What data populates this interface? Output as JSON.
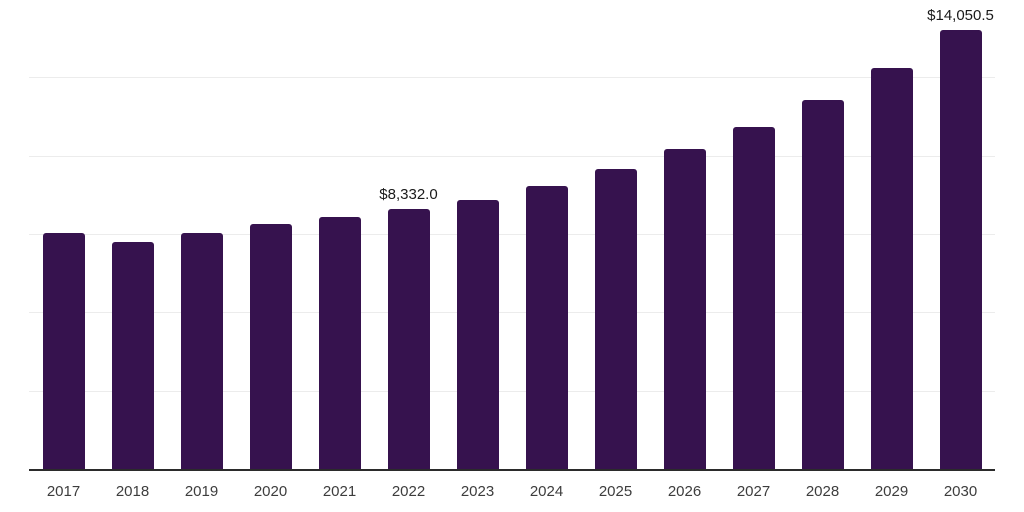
{
  "chart_data": {
    "type": "bar",
    "title": "",
    "xlabel": "",
    "ylabel": "",
    "categories": [
      "2017",
      "2018",
      "2019",
      "2020",
      "2021",
      "2022",
      "2023",
      "2024",
      "2025",
      "2026",
      "2027",
      "2028",
      "2029",
      "2030"
    ],
    "values": [
      7550,
      7290,
      7560,
      7840,
      8090,
      8332.0,
      8630,
      9060,
      9620,
      10230,
      10960,
      11810,
      12820,
      14050.5
    ],
    "data_labels": {
      "2022": "$8,332.0",
      "2030": "$14,050.5"
    },
    "ylim": [
      0,
      15000
    ],
    "gridline_step": 2500,
    "grid": true,
    "legend": false,
    "colors": {
      "bar": "#36124E",
      "gridline": "#ececec",
      "axis": "#2b2b2b",
      "data_label": "#1a1a1a",
      "tick_label": "#3d3d3d",
      "background": "#ffffff"
    }
  }
}
